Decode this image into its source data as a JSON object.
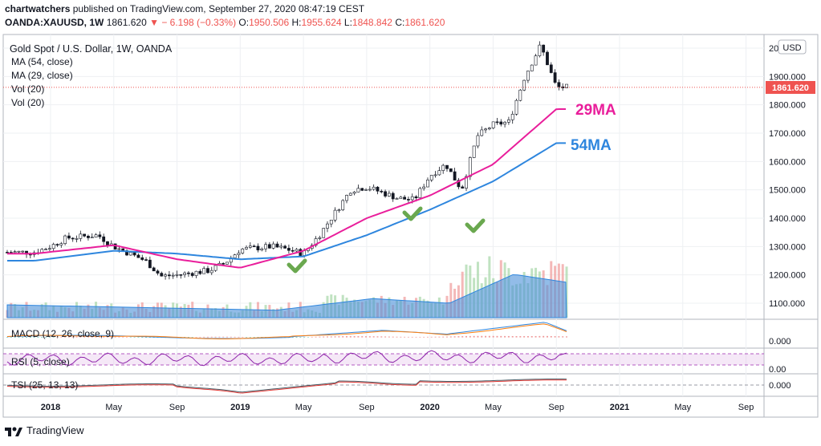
{
  "header": {
    "user": "chartwatchers",
    "published_text": "published on TradingView.com, September 27, 2020 08:47:19 CEST",
    "symbol": "OANDA:XAUUSD, 1W",
    "last": "1861.620",
    "change_text": "− 6.198 (−0.33%)",
    "o_label": "O:",
    "o_value": "1950.506",
    "h_label": "H:",
    "h_value": "1955.624",
    "l_label": "L:",
    "l_value": "1848.842",
    "c_label": "C:",
    "c_value": "1861.620"
  },
  "legend": {
    "title": "Gold Spot / U.S. Dollar, 1W, OANDA",
    "ma54": "MA (54, close)",
    "ma29": "MA (29, close)",
    "vol1": "Vol (20)",
    "vol2": "Vol (20)",
    "macd": "MACD (12, 26, close, 9)",
    "rsi": "RSI (5, close)",
    "tsi": "TSI (25, 13, 13)"
  },
  "annotations": {
    "ma29_label": "29MA",
    "ma54_label": "54MA",
    "ma29_color": "#e91e9b",
    "ma54_color": "#2e86de",
    "check_color": "#6aa84f"
  },
  "price_axis": {
    "currency": "USD",
    "ticks": [
      "2000.000",
      "1900.000",
      "1800.000",
      "1700.000",
      "1600.000",
      "1500.000",
      "1400.000",
      "1300.000",
      "1200.000",
      "1100.000"
    ],
    "current_label": "1861.620",
    "macd_tick": "0.000",
    "rsi_tick": "0.00",
    "tsi_tick": "0.000"
  },
  "time_axis": {
    "labels": [
      "2018",
      "May",
      "Sep",
      "2019",
      "May",
      "Sep",
      "2020",
      "May",
      "Sep",
      "2021",
      "May",
      "Sep"
    ]
  },
  "footer": {
    "brand": "TradingView"
  },
  "chart_data": {
    "type": "line",
    "title": "Gold Spot / U.S. Dollar, 1W, OANDA",
    "ylim": [
      1050,
      2060
    ],
    "grid": true,
    "series": [
      {
        "name": "Gold Spot / U.S. Dollar",
        "x": [
          "2017-12",
          "2018-01",
          "2018-02",
          "2018-04",
          "2018-05",
          "2018-07",
          "2018-08",
          "2018-09",
          "2018-11",
          "2018-12",
          "2019-01",
          "2019-03",
          "2019-04",
          "2019-05",
          "2019-06",
          "2019-07",
          "2019-08",
          "2019-09",
          "2019-11",
          "2019-12",
          "2020-01",
          "2020-02",
          "2020-03",
          "2020-04",
          "2020-05",
          "2020-06",
          "2020-07",
          "2020-08",
          "2020-09"
        ],
        "values": [
          1280,
          1300,
          1330,
          1340,
          1300,
          1250,
          1195,
          1200,
          1215,
          1240,
          1290,
          1300,
          1290,
          1275,
          1340,
          1420,
          1500,
          1510,
          1470,
          1465,
          1550,
          1590,
          1500,
          1690,
          1730,
          1740,
          1900,
          2010,
          1862
        ]
      },
      {
        "name": "MA (29, close)",
        "x": [
          "2017-12",
          "2018-05",
          "2018-09",
          "2019-01",
          "2019-05",
          "2019-09",
          "2020-01",
          "2020-05",
          "2020-09"
        ],
        "values": [
          1275,
          1305,
          1255,
          1225,
          1285,
          1400,
          1480,
          1590,
          1785
        ]
      },
      {
        "name": "MA (54, close)",
        "x": [
          "2017-12",
          "2018-05",
          "2018-09",
          "2019-01",
          "2019-05",
          "2019-09",
          "2020-01",
          "2020-05",
          "2020-09"
        ],
        "values": [
          1250,
          1285,
          1275,
          1255,
          1265,
          1340,
          1430,
          1530,
          1665
        ]
      }
    ]
  }
}
